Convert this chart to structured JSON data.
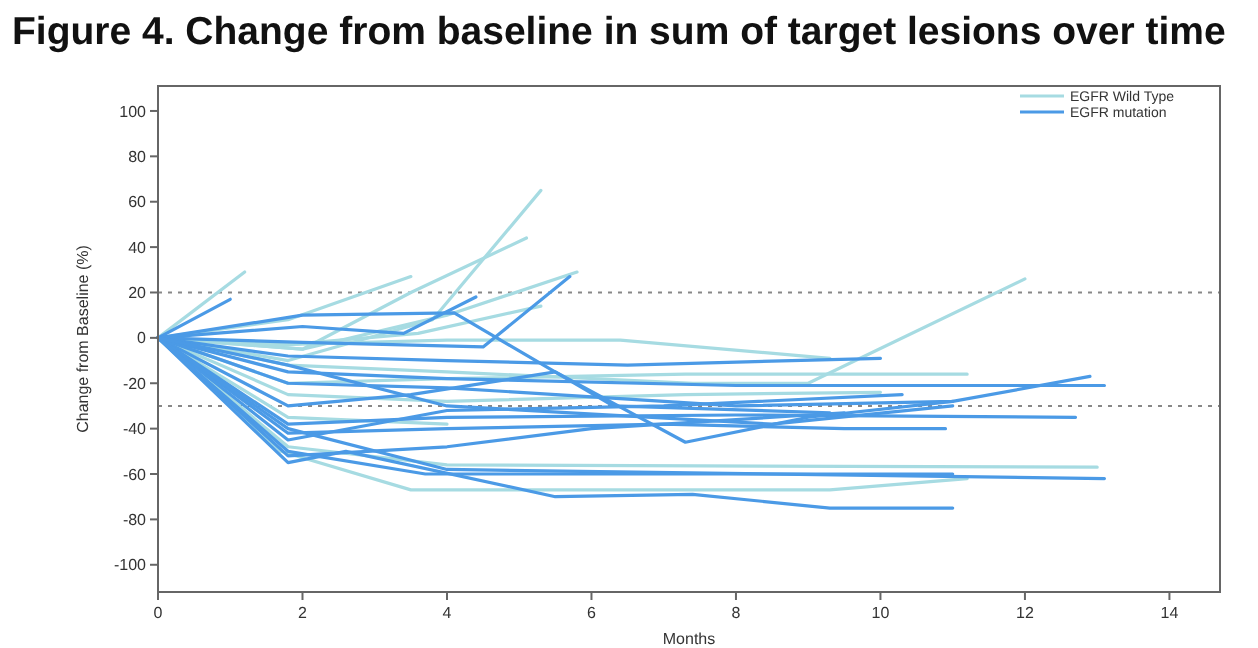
{
  "chart_data": {
    "type": "line",
    "title": "Figure 4. Change from baseline in sum of target lesions over time",
    "xlabel": "Months",
    "ylabel": "Change from Baseline (%)",
    "xlim": [
      0,
      14.7
    ],
    "ylim": [
      -112,
      111
    ],
    "xticks": [
      0,
      2,
      4,
      6,
      8,
      10,
      12,
      14
    ],
    "yticks": [
      -100,
      -80,
      -60,
      -40,
      -20,
      0,
      20,
      40,
      60,
      80,
      100
    ],
    "grid": false,
    "legend": "top right",
    "marker": "none",
    "line_style": "solid",
    "ref_lines": [
      {
        "axis": "y",
        "value": 20,
        "label": null,
        "color": "#888888",
        "line_style": "dotted"
      },
      {
        "axis": "y",
        "value": -30,
        "label": null,
        "color": "#888888",
        "line_style": "dotted"
      }
    ],
    "series": [
      {
        "name": "EGFR Wild Type",
        "color": "#a6dbe2",
        "x": [
          0,
          1.2
        ],
        "values": [
          0,
          29
        ]
      },
      {
        "color": "#a6dbe2",
        "x": [
          0,
          1.8,
          3.5
        ],
        "values": [
          0,
          8,
          27
        ]
      },
      {
        "color": "#a6dbe2",
        "x": [
          0,
          1.8,
          3.8,
          5.3
        ],
        "values": [
          0,
          -10,
          8,
          65
        ]
      },
      {
        "color": "#a6dbe2",
        "x": [
          0,
          2,
          3.5,
          5.1
        ],
        "values": [
          0,
          -5,
          20,
          44
        ]
      },
      {
        "color": "#a6dbe2",
        "x": [
          0,
          2,
          4,
          5.8
        ],
        "values": [
          0,
          -5,
          10,
          29
        ]
      },
      {
        "color": "#a6dbe2",
        "x": [
          0,
          1.8,
          3.6,
          5.3
        ],
        "values": [
          0,
          -3,
          2,
          14
        ]
      },
      {
        "color": "#a6dbe2",
        "x": [
          0,
          1.7,
          4,
          6.4,
          9.3
        ],
        "values": [
          0,
          -3,
          -1,
          -1,
          -9
        ]
      },
      {
        "color": "#a6dbe2",
        "x": [
          0,
          1.8,
          4,
          7.4,
          9,
          12
        ],
        "values": [
          0,
          -12,
          -15,
          -20,
          -20,
          26
        ]
      },
      {
        "color": "#a6dbe2",
        "x": [
          0,
          1.8,
          4,
          7.3,
          11.2
        ],
        "values": [
          0,
          -20,
          -18,
          -16,
          -16
        ]
      },
      {
        "color": "#a6dbe2",
        "x": [
          0,
          1.8,
          4,
          7.3,
          10
        ],
        "values": [
          0,
          -25,
          -28,
          -25,
          -24
        ]
      },
      {
        "color": "#a6dbe2",
        "x": [
          0,
          1.8,
          4,
          13
        ],
        "values": [
          0,
          -48,
          -56,
          -57
        ]
      },
      {
        "color": "#a6dbe2",
        "x": [
          0,
          1.7,
          3.5,
          9.3,
          11.2
        ],
        "values": [
          0,
          -50,
          -67,
          -67,
          -62
        ]
      },
      {
        "color": "#a6dbe2",
        "x": [
          0,
          1.8,
          4
        ],
        "values": [
          0,
          -35,
          -38
        ]
      },
      {
        "name": "EGFR mutation",
        "color": "#4b9ae6",
        "x": [
          0,
          1
        ],
        "values": [
          0,
          17
        ]
      },
      {
        "color": "#4b9ae6",
        "x": [
          0,
          2,
          4.1,
          6.3,
          9.3
        ],
        "values": [
          0,
          10,
          11,
          -30,
          -33
        ]
      },
      {
        "color": "#4b9ae6",
        "x": [
          0,
          2,
          3.4,
          4.4
        ],
        "values": [
          0,
          5,
          2,
          18
        ]
      },
      {
        "color": "#4b9ae6",
        "x": [
          0,
          2,
          4.5,
          5.7
        ],
        "values": [
          0,
          -2,
          -4,
          27
        ]
      },
      {
        "color": "#4b9ae6",
        "x": [
          0,
          1.8,
          4,
          6.5,
          10
        ],
        "values": [
          0,
          -8,
          -10,
          -12,
          -9
        ]
      },
      {
        "color": "#4b9ae6",
        "x": [
          0,
          1.8,
          4,
          8,
          13.1
        ],
        "values": [
          0,
          -15,
          -18,
          -21,
          -21
        ]
      },
      {
        "color": "#4b9ae6",
        "x": [
          0,
          1.8,
          4,
          8,
          11,
          12.9
        ],
        "values": [
          0,
          -20,
          -22,
          -30,
          -28,
          -17
        ]
      },
      {
        "color": "#4b9ae6",
        "x": [
          0,
          1.8,
          4,
          8,
          12.7
        ],
        "values": [
          0,
          -38,
          -35,
          -34,
          -35
        ]
      },
      {
        "color": "#4b9ae6",
        "x": [
          0,
          1.8,
          4,
          7,
          9.5,
          10.9
        ],
        "values": [
          0,
          -42,
          -40,
          -38,
          -40,
          -40
        ]
      },
      {
        "color": "#4b9ae6",
        "x": [
          0,
          1.8,
          3.5,
          5.5,
          7.3,
          9,
          11
        ],
        "values": [
          0,
          -30,
          -25,
          -15,
          -46,
          -35,
          -28
        ]
      },
      {
        "color": "#4b9ae6",
        "x": [
          0,
          1.8,
          4,
          7,
          10.3
        ],
        "values": [
          0,
          -45,
          -32,
          -30,
          -25
        ]
      },
      {
        "color": "#4b9ae6",
        "x": [
          0,
          1.8,
          4,
          6,
          9.5
        ],
        "values": [
          0,
          -52,
          -48,
          -40,
          -33
        ]
      },
      {
        "color": "#4b9ae6",
        "x": [
          0,
          1.8,
          4,
          13.1
        ],
        "values": [
          0,
          -40,
          -58,
          -62
        ]
      },
      {
        "color": "#4b9ae6",
        "x": [
          0,
          1.8,
          2.6,
          5.5,
          7.4,
          9.3,
          11
        ],
        "values": [
          0,
          -55,
          -50,
          -70,
          -69,
          -75,
          -75
        ]
      },
      {
        "color": "#4b9ae6",
        "x": [
          0,
          1.8,
          3.7,
          11
        ],
        "values": [
          0,
          -50,
          -60,
          -60
        ]
      },
      {
        "color": "#4b9ae6",
        "x": [
          0,
          1.8,
          4,
          8.5,
          11
        ],
        "values": [
          0,
          -12,
          -30,
          -38,
          -30
        ]
      }
    ]
  }
}
